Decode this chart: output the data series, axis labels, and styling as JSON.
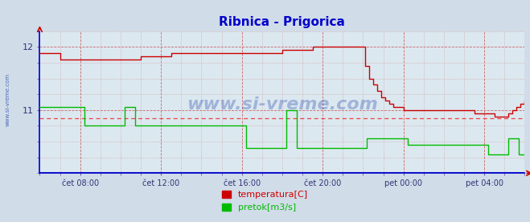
{
  "title": "Ribnica - Prigorica",
  "title_color": "#0000cc",
  "bg_color": "#d0dce8",
  "plot_bg_color": "#dce8f0",
  "x_labels": [
    "čet 08:00",
    "čet 12:00",
    "čet 16:00",
    "čet 20:00",
    "pet 00:00",
    "pet 04:00"
  ],
  "x_ticks_pos": [
    2,
    6,
    10,
    14,
    18,
    22
  ],
  "ylim": [
    10.0,
    12.25
  ],
  "y_ticks": [
    11.0,
    12.0
  ],
  "avg_line_y": 10.87,
  "watermark": "www.si-vreme.com",
  "legend_items": [
    {
      "label": "temperatura[C]",
      "color": "#cc0000"
    },
    {
      "label": "pretok[m3/s]",
      "color": "#00bb00"
    }
  ],
  "temp_data": [
    [
      0,
      11.9
    ],
    [
      0.5,
      11.9
    ],
    [
      1,
      11.8
    ],
    [
      4,
      11.8
    ],
    [
      4.5,
      11.8
    ],
    [
      5,
      11.85
    ],
    [
      6,
      11.85
    ],
    [
      6.5,
      11.9
    ],
    [
      7,
      11.9
    ],
    [
      8,
      11.9
    ],
    [
      9,
      11.9
    ],
    [
      10,
      11.9
    ],
    [
      11,
      11.9
    ],
    [
      12,
      11.95
    ],
    [
      13,
      11.95
    ],
    [
      13.5,
      12.0
    ],
    [
      14,
      12.0
    ],
    [
      14.5,
      12.0
    ],
    [
      15,
      12.0
    ],
    [
      15.5,
      12.0
    ],
    [
      16,
      12.0
    ],
    [
      16.1,
      11.7
    ],
    [
      16.3,
      11.5
    ],
    [
      16.5,
      11.4
    ],
    [
      16.7,
      11.3
    ],
    [
      16.9,
      11.2
    ],
    [
      17.1,
      11.15
    ],
    [
      17.3,
      11.1
    ],
    [
      17.5,
      11.05
    ],
    [
      17.7,
      11.05
    ],
    [
      18,
      11.0
    ],
    [
      18.5,
      11.0
    ],
    [
      19,
      11.0
    ],
    [
      19.5,
      11.0
    ],
    [
      20,
      11.0
    ],
    [
      20.5,
      11.0
    ],
    [
      21,
      11.0
    ],
    [
      21.5,
      10.95
    ],
    [
      22,
      10.95
    ],
    [
      22.5,
      10.9
    ],
    [
      23,
      10.9
    ],
    [
      23.2,
      10.95
    ],
    [
      23.4,
      11.0
    ],
    [
      23.6,
      11.05
    ],
    [
      23.8,
      11.1
    ],
    [
      24,
      11.15
    ]
  ],
  "flow_data": [
    [
      0,
      11.05
    ],
    [
      1,
      11.05
    ],
    [
      2,
      11.05
    ],
    [
      2.2,
      10.75
    ],
    [
      4,
      10.75
    ],
    [
      4.2,
      11.05
    ],
    [
      4.5,
      11.05
    ],
    [
      4.7,
      10.75
    ],
    [
      6,
      10.75
    ],
    [
      9,
      10.75
    ],
    [
      10,
      10.75
    ],
    [
      10.2,
      10.4
    ],
    [
      12,
      10.4
    ],
    [
      12.2,
      11.0
    ],
    [
      12.5,
      11.0
    ],
    [
      12.7,
      10.4
    ],
    [
      14,
      10.4
    ],
    [
      16,
      10.4
    ],
    [
      16.2,
      10.55
    ],
    [
      18,
      10.55
    ],
    [
      18.2,
      10.45
    ],
    [
      20,
      10.45
    ],
    [
      22,
      10.45
    ],
    [
      22.2,
      10.3
    ],
    [
      23,
      10.3
    ],
    [
      23.2,
      10.55
    ],
    [
      23.5,
      10.55
    ],
    [
      23.7,
      10.3
    ],
    [
      24,
      10.3
    ]
  ]
}
